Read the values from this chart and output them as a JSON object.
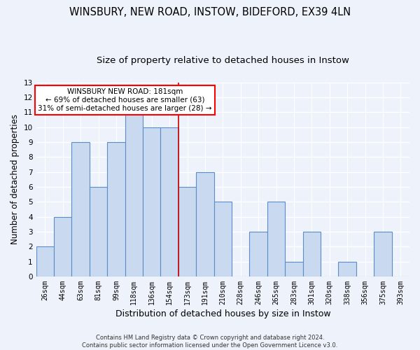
{
  "title1": "WINSBURY, NEW ROAD, INSTOW, BIDEFORD, EX39 4LN",
  "title2": "Size of property relative to detached houses in Instow",
  "xlabel": "Distribution of detached houses by size in Instow",
  "ylabel": "Number of detached properties",
  "categories": [
    "26sqm",
    "44sqm",
    "63sqm",
    "81sqm",
    "99sqm",
    "118sqm",
    "136sqm",
    "154sqm",
    "173sqm",
    "191sqm",
    "210sqm",
    "228sqm",
    "246sqm",
    "265sqm",
    "283sqm",
    "301sqm",
    "320sqm",
    "338sqm",
    "356sqm",
    "375sqm",
    "393sqm"
  ],
  "values": [
    2,
    4,
    9,
    6,
    9,
    11,
    10,
    10,
    6,
    7,
    5,
    0,
    3,
    5,
    1,
    3,
    0,
    1,
    0,
    3,
    0
  ],
  "bar_color": "#c9d9f0",
  "bar_edge_color": "#5b8ec9",
  "vline_index": 8,
  "vline_color": "#cc0000",
  "annotation_text": "WINSBURY NEW ROAD: 181sqm\n← 69% of detached houses are smaller (63)\n31% of semi-detached houses are larger (28) →",
  "annotation_box_color": "white",
  "annotation_box_edge_color": "red",
  "ylim": [
    0,
    13
  ],
  "yticks": [
    0,
    1,
    2,
    3,
    4,
    5,
    6,
    7,
    8,
    9,
    10,
    11,
    12,
    13
  ],
  "footer": "Contains HM Land Registry data © Crown copyright and database right 2024.\nContains public sector information licensed under the Open Government Licence v3.0.",
  "background_color": "#eef2fb",
  "grid_color": "#ffffff",
  "title1_fontsize": 10.5,
  "title2_fontsize": 9.5,
  "xlabel_fontsize": 9,
  "ylabel_fontsize": 8.5,
  "tick_fontsize": 7,
  "annotation_fontsize": 7.5,
  "footer_fontsize": 6
}
